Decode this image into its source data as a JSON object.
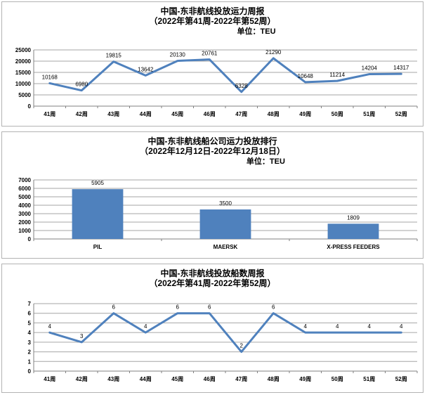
{
  "colors": {
    "series": "#4f81bd",
    "gridline": "#a6a6a6",
    "axis": "#808080",
    "panel_border": "#b3b3b3",
    "text": "#000000"
  },
  "chart_data": [
    {
      "type": "line",
      "title": "中国-东非航线投放运力周报",
      "subtitle": "（2022年第41周-2022年第52周）",
      "unit_label": "单位：TEU",
      "categories": [
        "41周",
        "42周",
        "43周",
        "44周",
        "45周",
        "46周",
        "47周",
        "48周",
        "49周",
        "50周",
        "51周",
        "52周"
      ],
      "values": [
        10168,
        6980,
        19815,
        13642,
        20130,
        20761,
        6328,
        21290,
        10648,
        11214,
        14204,
        14317
      ],
      "xlabel": "",
      "ylabel": "",
      "ylim": [
        0,
        25000
      ],
      "ytick_step": 5000,
      "grid": true,
      "legend": "none",
      "data_labels": true
    },
    {
      "type": "bar",
      "title": "中国-东非航线船公司运力投放排行",
      "subtitle": "（2022年12月12日-2022年12月18日）",
      "unit_label": "单位：TEU",
      "categories": [
        "PIL",
        "MAERSK",
        "X-PRESS FEEDERS"
      ],
      "values": [
        5905,
        3500,
        1809
      ],
      "xlabel": "",
      "ylabel": "",
      "ylim": [
        0,
        7000
      ],
      "ytick_step": 1000,
      "grid": true,
      "legend": "none",
      "data_labels": true
    },
    {
      "type": "line",
      "title": "中国-东非航线投放船数周报",
      "subtitle": "（2022年第41周-2022年第52周）",
      "unit_label": "",
      "categories": [
        "41周",
        "42周",
        "43周",
        "44周",
        "45周",
        "46周",
        "47周",
        "48周",
        "49周",
        "50周",
        "51周",
        "52周"
      ],
      "values": [
        4,
        3,
        6,
        4,
        6,
        6,
        2,
        6,
        4,
        4,
        4,
        4
      ],
      "xlabel": "",
      "ylabel": "",
      "ylim": [
        0,
        7
      ],
      "ytick_step": 1,
      "grid": true,
      "legend": "none",
      "data_labels": true
    }
  ]
}
